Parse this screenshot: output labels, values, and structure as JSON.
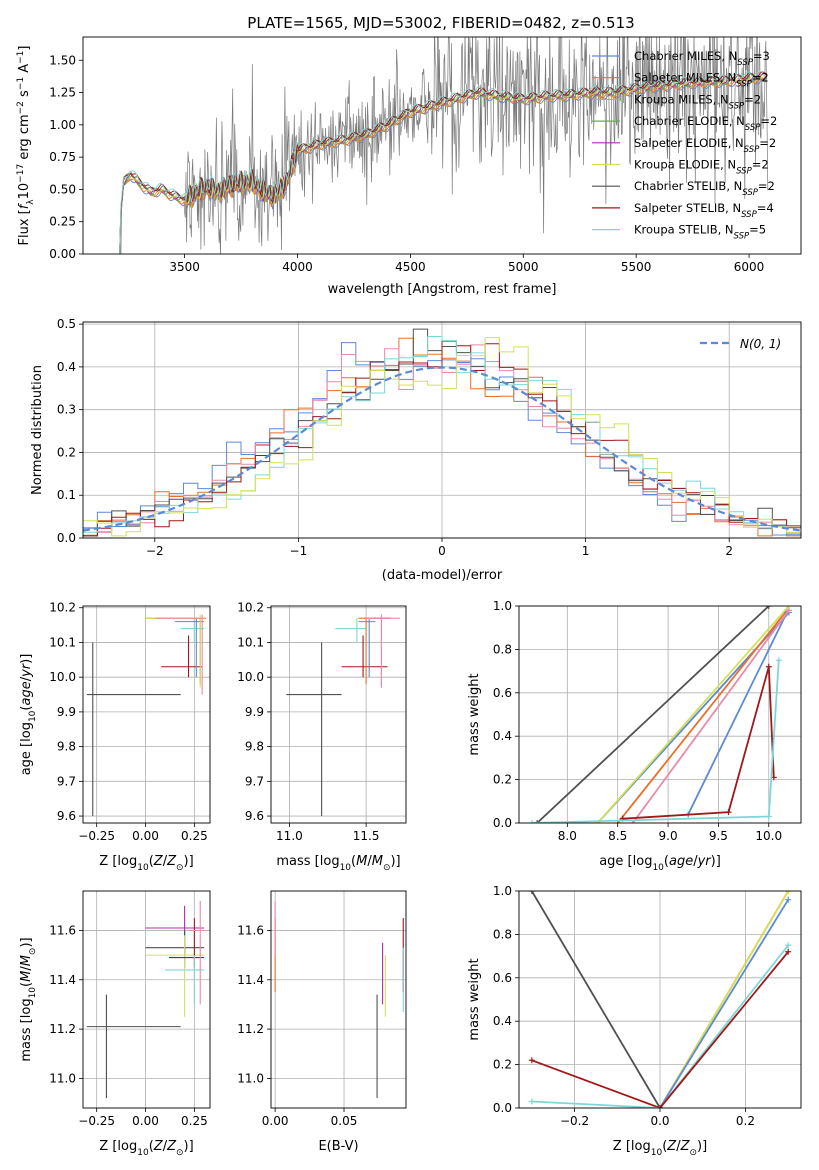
{
  "title": "PLATE=1565, MJD=53002, FIBERID=0482, z=0.513",
  "colors": {
    "Chabrier MILES": "#5b8bd6",
    "Salpeter MILES": "#e8702a",
    "Kroupa MILES": "#e3a23a",
    "Chabrier ELODIE": "#6aaa50",
    "Salpeter ELODIE": "#b02bb3",
    "Kroupa ELODIE": "#d4e157",
    "Chabrier STELIB": "#505050",
    "Salpeter STELIB": "#a01818",
    "Kroupa STELIB": "#7fd6d6",
    "pink": "#e88aa8",
    "data": "#7a7a7a",
    "gauss": "#5b8bd6"
  },
  "chart_data": [
    {
      "id": "spectrum",
      "type": "line",
      "title": "PLATE=1565, MJD=53002, FIBERID=0482, z=0.513",
      "xlabel": "wavelength [Angstrom, rest frame]",
      "ylabel": "Flux [f_λ 10^-17 erg cm^-2 s^-1 A^-1]",
      "xlim": [
        3050,
        6230
      ],
      "ylim": [
        0,
        1.68
      ],
      "xticks": [
        3500,
        4000,
        4500,
        5000,
        5500,
        6000
      ],
      "yticks": [
        0.0,
        0.25,
        0.5,
        0.75,
        1.0,
        1.25,
        1.5
      ],
      "grid": false,
      "legend_position": "right",
      "legend": [
        {
          "label": "Chabrier MILES, N",
          "sub": "SSP",
          "tail": "=3",
          "color": "#5b8bd6"
        },
        {
          "label": "Salpeter MILES, N",
          "sub": "SSP",
          "tail": "=2",
          "color": "#e8702a"
        },
        {
          "label": "Kroupa MILES, N",
          "sub": "SSP",
          "tail": "=2",
          "color": "#e3a23a"
        },
        {
          "label": "Chabrier ELODIE, N",
          "sub": "SSP",
          "tail": "=2",
          "color": "#6aaa50"
        },
        {
          "label": "Salpeter ELODIE, N",
          "sub": "SSP",
          "tail": "=2",
          "color": "#b02bb3"
        },
        {
          "label": "Kroupa ELODIE, N",
          "sub": "SSP",
          "tail": "=2",
          "color": "#d4e157"
        },
        {
          "label": "Chabrier STELIB, N",
          "sub": "SSP",
          "tail": "=2",
          "color": "#505050"
        },
        {
          "label": "Salpeter STELIB, N",
          "sub": "SSP",
          "tail": "=4",
          "color": "#a01818"
        },
        {
          "label": "Kroupa STELIB, N",
          "sub": "SSP",
          "tail": "=5",
          "color": "#7fd6d6"
        }
      ],
      "model_continuum": [
        [
          3200,
          0.0
        ],
        [
          3230,
          0.55
        ],
        [
          3260,
          0.62
        ],
        [
          3300,
          0.55
        ],
        [
          3350,
          0.48
        ],
        [
          3400,
          0.5
        ],
        [
          3450,
          0.45
        ],
        [
          3500,
          0.42
        ],
        [
          3550,
          0.47
        ],
        [
          3600,
          0.52
        ],
        [
          3650,
          0.48
        ],
        [
          3700,
          0.53
        ],
        [
          3750,
          0.55
        ],
        [
          3800,
          0.56
        ],
        [
          3850,
          0.48
        ],
        [
          3900,
          0.45
        ],
        [
          3950,
          0.55
        ],
        [
          4000,
          0.8
        ],
        [
          4100,
          0.85
        ],
        [
          4200,
          0.88
        ],
        [
          4300,
          0.92
        ],
        [
          4400,
          1.0
        ],
        [
          4500,
          1.1
        ],
        [
          4600,
          1.15
        ],
        [
          4700,
          1.2
        ],
        [
          4800,
          1.25
        ],
        [
          4900,
          1.22
        ],
        [
          5000,
          1.2
        ],
        [
          5100,
          1.22
        ],
        [
          5200,
          1.23
        ],
        [
          5300,
          1.25
        ],
        [
          5400,
          1.25
        ],
        [
          5500,
          1.28
        ],
        [
          5600,
          1.3
        ],
        [
          5700,
          1.32
        ],
        [
          5800,
          1.33
        ],
        [
          5900,
          1.34
        ],
        [
          6000,
          1.36
        ],
        [
          6080,
          1.37
        ]
      ]
    },
    {
      "id": "residuals",
      "type": "line",
      "xlabel": "(data-model)/error",
      "ylabel": "Normed distribution",
      "xlim": [
        -2.5,
        2.5
      ],
      "ylim": [
        0,
        0.505
      ],
      "xticks": [
        -2,
        -1,
        0,
        1,
        2
      ],
      "yticks": [
        0.0,
        0.1,
        0.2,
        0.3,
        0.4,
        0.5
      ],
      "grid": true,
      "legend_position": "top-right",
      "legend": [
        {
          "label": "N(0, 1)",
          "color": "#5b8bd6",
          "style": "dashed"
        }
      ],
      "gaussian": {
        "mean": 0,
        "sigma": 1
      }
    },
    {
      "id": "age-vs-Z",
      "type": "scatter",
      "xlabel": "Z [log10(Z/Z⊙)]",
      "ylabel": "age [log10(age/yr)]",
      "xlim": [
        -0.32,
        0.33
      ],
      "ylim": [
        9.58,
        10.205
      ],
      "xticks": [
        -0.25,
        0.0,
        0.25
      ],
      "yticks": [
        9.6,
        9.7,
        9.8,
        9.9,
        10.0,
        10.1,
        10.2
      ],
      "grid": true,
      "points": [
        {
          "model": "Chabrier STELIB",
          "x": -0.27,
          "y": 9.95,
          "xlo": -0.3,
          "xhi": 0.18,
          "ylo": 9.6,
          "yhi": 10.1
        },
        {
          "model": "Salpeter STELIB",
          "x": 0.22,
          "y": 10.03,
          "xlo": 0.08,
          "xhi": 0.29,
          "ylo": 10.0,
          "yhi": 10.12
        },
        {
          "model": "Kroupa STELIB",
          "x": 0.25,
          "y": 10.14,
          "xlo": 0.18,
          "xhi": 0.3,
          "ylo": 10.1,
          "yhi": 10.17
        },
        {
          "model": "Chabrier MILES",
          "x": 0.26,
          "y": 10.16,
          "xlo": 0.15,
          "xhi": 0.3,
          "ylo": 10.0,
          "yhi": 10.17
        },
        {
          "model": "Salpeter MILES",
          "x": 0.28,
          "y": 10.17,
          "xlo": 0.0,
          "xhi": 0.3,
          "ylo": 9.98,
          "yhi": 10.17
        },
        {
          "model": "Kroupa ELODIE",
          "x": 0.28,
          "y": 10.17,
          "xlo": 0.0,
          "xhi": 0.31,
          "ylo": 9.97,
          "yhi": 10.18
        },
        {
          "model": "pink",
          "x": 0.29,
          "y": 10.17,
          "xlo": 0.05,
          "xhi": 0.31,
          "ylo": 9.95,
          "yhi": 10.18
        }
      ]
    },
    {
      "id": "age-vs-mass",
      "type": "scatter",
      "xlabel": "mass [log10(M/M⊙)]",
      "xlim": [
        10.88,
        11.76
      ],
      "ylim": [
        9.58,
        10.205
      ],
      "xticks": [
        11.0,
        11.5
      ],
      "yticks": [
        9.6,
        9.7,
        9.8,
        9.9,
        10.0,
        10.1,
        10.2
      ],
      "grid": true,
      "points": [
        {
          "model": "Chabrier STELIB",
          "x": 11.21,
          "y": 9.95,
          "xlo": 10.98,
          "xhi": 11.34,
          "ylo": 9.6,
          "yhi": 10.1
        },
        {
          "model": "Kroupa STELIB",
          "x": 11.44,
          "y": 10.14,
          "xlo": 11.3,
          "xhi": 11.5,
          "ylo": 10.1,
          "yhi": 10.17
        },
        {
          "model": "Salpeter STELIB",
          "x": 11.48,
          "y": 10.03,
          "xlo": 11.34,
          "xhi": 11.64,
          "ylo": 10.0,
          "yhi": 10.12
        },
        {
          "model": "Chabrier MILES",
          "x": 11.52,
          "y": 10.16,
          "xlo": 11.45,
          "xhi": 11.56,
          "ylo": 10.0,
          "yhi": 10.17
        },
        {
          "model": "Salpeter MILES",
          "x": 11.5,
          "y": 10.17,
          "xlo": 11.45,
          "xhi": 11.56,
          "ylo": 9.98,
          "yhi": 10.17
        },
        {
          "model": "Salpeter ELODIE",
          "x": 11.6,
          "y": 10.17,
          "xlo": 11.55,
          "xhi": 11.66,
          "ylo": 9.97,
          "yhi": 10.18
        },
        {
          "model": "pink",
          "x": 11.6,
          "y": 10.17,
          "xlo": 11.5,
          "xhi": 11.72,
          "ylo": 9.97,
          "yhi": 10.18
        }
      ]
    },
    {
      "id": "massweight-vs-age",
      "type": "line",
      "xlabel": "age [log10(age/yr)]",
      "ylabel": "mass weight",
      "xlim": [
        7.52,
        10.32
      ],
      "ylim": [
        0,
        1.0
      ],
      "xticks": [
        8.0,
        8.5,
        9.0,
        9.5,
        10.0
      ],
      "yticks": [
        0.0,
        0.2,
        0.4,
        0.6,
        0.8,
        1.0
      ],
      "grid": true,
      "series": [
        {
          "model": "Chabrier STELIB",
          "points": [
            [
              7.7,
              0.0
            ],
            [
              10.0,
              1.0
            ]
          ]
        },
        {
          "model": "Chabrier MILES",
          "points": [
            [
              8.3,
              0.0
            ],
            [
              10.2,
              0.97
            ]
          ]
        },
        {
          "model": "Salpeter MILES",
          "points": [
            [
              8.5,
              0.0
            ],
            [
              10.18,
              0.98
            ]
          ]
        },
        {
          "model": "Kroupa ELODIE",
          "points": [
            [
              8.3,
              0.0
            ],
            [
              10.2,
              1.0
            ]
          ]
        },
        {
          "model": "Chabrier MILES",
          "points": [
            [
              9.2,
              0.04
            ],
            [
              10.18,
              0.97
            ]
          ]
        },
        {
          "model": "pink",
          "points": [
            [
              8.65,
              0.0
            ],
            [
              10.2,
              0.98
            ]
          ]
        },
        {
          "model": "Salpeter STELIB",
          "points": [
            [
              8.55,
              0.02
            ],
            [
              9.6,
              0.05
            ],
            [
              10.0,
              0.72
            ],
            [
              10.05,
              0.21
            ]
          ]
        },
        {
          "model": "Kroupa STELIB",
          "points": [
            [
              7.65,
              0.0
            ],
            [
              10.0,
              0.03
            ],
            [
              10.1,
              0.75
            ]
          ]
        }
      ]
    },
    {
      "id": "mass-vs-Z",
      "type": "scatter",
      "xlabel": "Z [log10(Z/Z⊙)]",
      "ylabel": "mass [log10(M/M⊙)]",
      "xlim": [
        -0.32,
        0.33
      ],
      "ylim": [
        10.88,
        11.76
      ],
      "xticks": [
        -0.25,
        0.0,
        0.25
      ],
      "yticks": [
        11.0,
        11.2,
        11.4,
        11.6
      ],
      "grid": true,
      "points": [
        {
          "model": "Chabrier STELIB",
          "x": -0.2,
          "y": 11.21,
          "xlo": -0.3,
          "xhi": 0.18,
          "ylo": 10.92,
          "yhi": 11.34
        },
        {
          "model": "Salpeter ELODIE",
          "x": 0.2,
          "y": 11.61,
          "xlo": 0.0,
          "xhi": 0.3,
          "ylo": 11.5,
          "yhi": 11.7
        },
        {
          "model": "Chabrier STELIB",
          "x": 0.2,
          "y": 11.53,
          "xlo": 0.0,
          "xhi": 0.3,
          "ylo": 11.45,
          "yhi": 11.6
        },
        {
          "model": "Kroupa ELODIE",
          "x": 0.2,
          "y": 11.5,
          "xlo": 0.0,
          "xhi": 0.3,
          "ylo": 11.25,
          "yhi": 11.58
        },
        {
          "model": "Salpeter STELIB",
          "x": 0.25,
          "y": 11.49,
          "xlo": 0.12,
          "xhi": 0.3,
          "ylo": 11.45,
          "yhi": 11.65
        },
        {
          "model": "Kroupa STELIB",
          "x": 0.25,
          "y": 11.44,
          "xlo": 0.1,
          "xhi": 0.3,
          "ylo": 11.3,
          "yhi": 11.5
        },
        {
          "model": "pink",
          "x": 0.28,
          "y": 11.6,
          "xlo": 0.22,
          "xhi": 0.3,
          "ylo": 11.3,
          "yhi": 11.72
        }
      ]
    },
    {
      "id": "mass-vs-ebv",
      "type": "scatter",
      "xlabel": "E(B-V)",
      "xlim": [
        -0.003,
        0.095
      ],
      "ylim": [
        10.88,
        11.76
      ],
      "xticks": [
        0.0,
        0.05
      ],
      "yticks": [
        11.0,
        11.2,
        11.4,
        11.6
      ],
      "grid": true,
      "points": [
        {
          "model": "Salpeter MILES",
          "x": 0.0,
          "y": 11.5,
          "xlo": 0.0,
          "xhi": 0.0,
          "ylo": 11.35,
          "yhi": 11.65
        },
        {
          "model": "pink",
          "x": 0.0,
          "y": 11.6,
          "xlo": 0.0,
          "xhi": 0.0,
          "ylo": 11.5,
          "yhi": 11.72
        },
        {
          "model": "Chabrier STELIB",
          "x": 0.074,
          "y": 11.21,
          "xlo": 0.074,
          "xhi": 0.074,
          "ylo": 10.92,
          "yhi": 11.34
        },
        {
          "model": "Salpeter ELODIE",
          "x": 0.078,
          "y": 11.45,
          "xlo": 0.078,
          "xhi": 0.078,
          "ylo": 11.3,
          "yhi": 11.55
        },
        {
          "model": "Kroupa ELODIE",
          "x": 0.08,
          "y": 11.4,
          "xlo": 0.08,
          "xhi": 0.08,
          "ylo": 11.25,
          "yhi": 11.5
        },
        {
          "model": "Salpeter STELIB",
          "x": 0.093,
          "y": 11.5,
          "xlo": 0.093,
          "xhi": 0.093,
          "ylo": 11.35,
          "yhi": 11.65
        },
        {
          "model": "Kroupa STELIB",
          "x": 0.093,
          "y": 11.4,
          "xlo": 0.093,
          "xhi": 0.093,
          "ylo": 11.27,
          "yhi": 11.53
        }
      ]
    },
    {
      "id": "massweight-vs-Z",
      "type": "line",
      "xlabel": "Z [log10(Z/Z⊙)]",
      "ylabel": "mass weight",
      "xlim": [
        -0.33,
        0.33
      ],
      "ylim": [
        0,
        1.0
      ],
      "xticks": [
        -0.2,
        0.0,
        0.2
      ],
      "yticks": [
        0.0,
        0.2,
        0.4,
        0.6,
        0.8,
        1.0
      ],
      "grid": true,
      "series": [
        {
          "model": "Chabrier STELIB",
          "points": [
            [
              -0.3,
              1.0
            ],
            [
              0.0,
              0.0
            ]
          ]
        },
        {
          "model": "Salpeter STELIB",
          "points": [
            [
              -0.3,
              0.22
            ],
            [
              0.0,
              0.0
            ]
          ]
        },
        {
          "model": "Kroupa STELIB",
          "points": [
            [
              -0.3,
              0.03
            ],
            [
              0.0,
              0.0
            ]
          ]
        },
        {
          "model": "Salpeter MILES",
          "points": [
            [
              0.0,
              0.0
            ],
            [
              0.3,
              1.0
            ]
          ]
        },
        {
          "model": "Kroupa ELODIE",
          "points": [
            [
              0.0,
              0.0
            ],
            [
              0.3,
              1.0
            ]
          ]
        },
        {
          "model": "Chabrier MILES",
          "points": [
            [
              0.0,
              0.0
            ],
            [
              0.3,
              0.96
            ]
          ]
        },
        {
          "model": "Kroupa STELIB",
          "points": [
            [
              0.0,
              0.0
            ],
            [
              0.3,
              0.75
            ]
          ]
        },
        {
          "model": "Salpeter STELIB",
          "points": [
            [
              0.0,
              0.0
            ],
            [
              0.3,
              0.72
            ]
          ]
        }
      ]
    }
  ]
}
